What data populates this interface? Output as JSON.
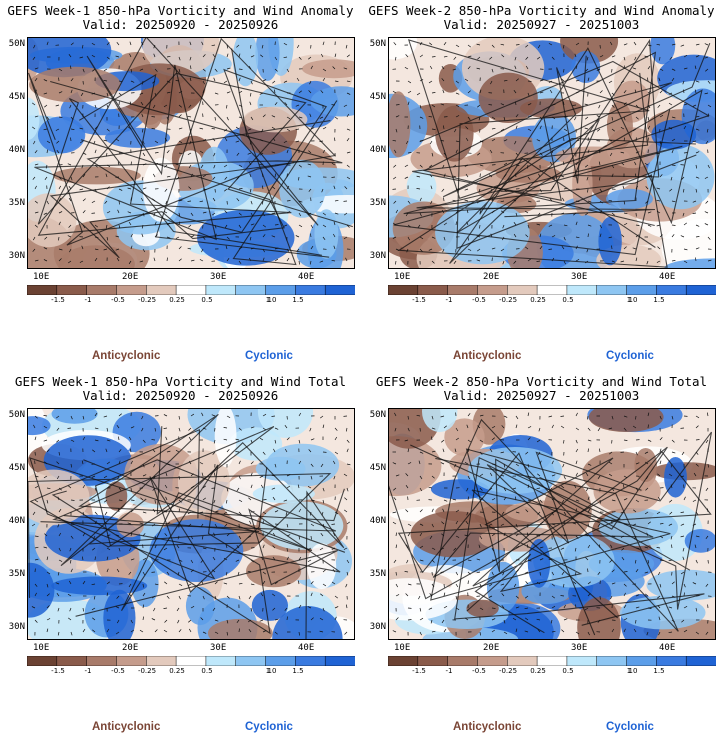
{
  "panels": [
    {
      "title": "GEFS Week-1 850-hPa Vorticity and Wind Anomaly",
      "valid": "Valid: 20250920 - 20250926",
      "seed": 3
    },
    {
      "title": "GEFS Week-2 850-hPa Vorticity and Wind Anomaly",
      "valid": "Valid: 20250927 - 20251003",
      "seed": 11
    },
    {
      "title": "GEFS Week-1 850-hPa Vorticity and Wind Total",
      "valid": "Valid: 20250920 - 20250926",
      "seed": 23
    },
    {
      "title": "GEFS Week-2 850-hPa Vorticity and Wind Total",
      "valid": "Valid: 20250927 - 20251003",
      "seed": 37
    }
  ],
  "lat_labels": [
    "50N",
    "45N",
    "40N",
    "35N",
    "30N"
  ],
  "lon_labels": [
    "10E",
    "20E",
    "30E",
    "40E"
  ],
  "colorbar": {
    "labels": [
      "-1.5",
      "-1",
      "-0.5",
      "-0.25",
      "0.25",
      "0.5",
      "1",
      "1.5"
    ],
    "scale_note": "10",
    "colors": [
      "#6b4233",
      "#8a5b4b",
      "#a87b6a",
      "#c59c8c",
      "#e3cabd",
      "#ffffff",
      "#bfe8fb",
      "#8ec6f2",
      "#5c9ee9",
      "#3a7be0",
      "#1f63d4"
    ]
  },
  "legend": {
    "anticyclonic": "Anticyclonic",
    "cyclonic": "Cyclonic"
  }
}
